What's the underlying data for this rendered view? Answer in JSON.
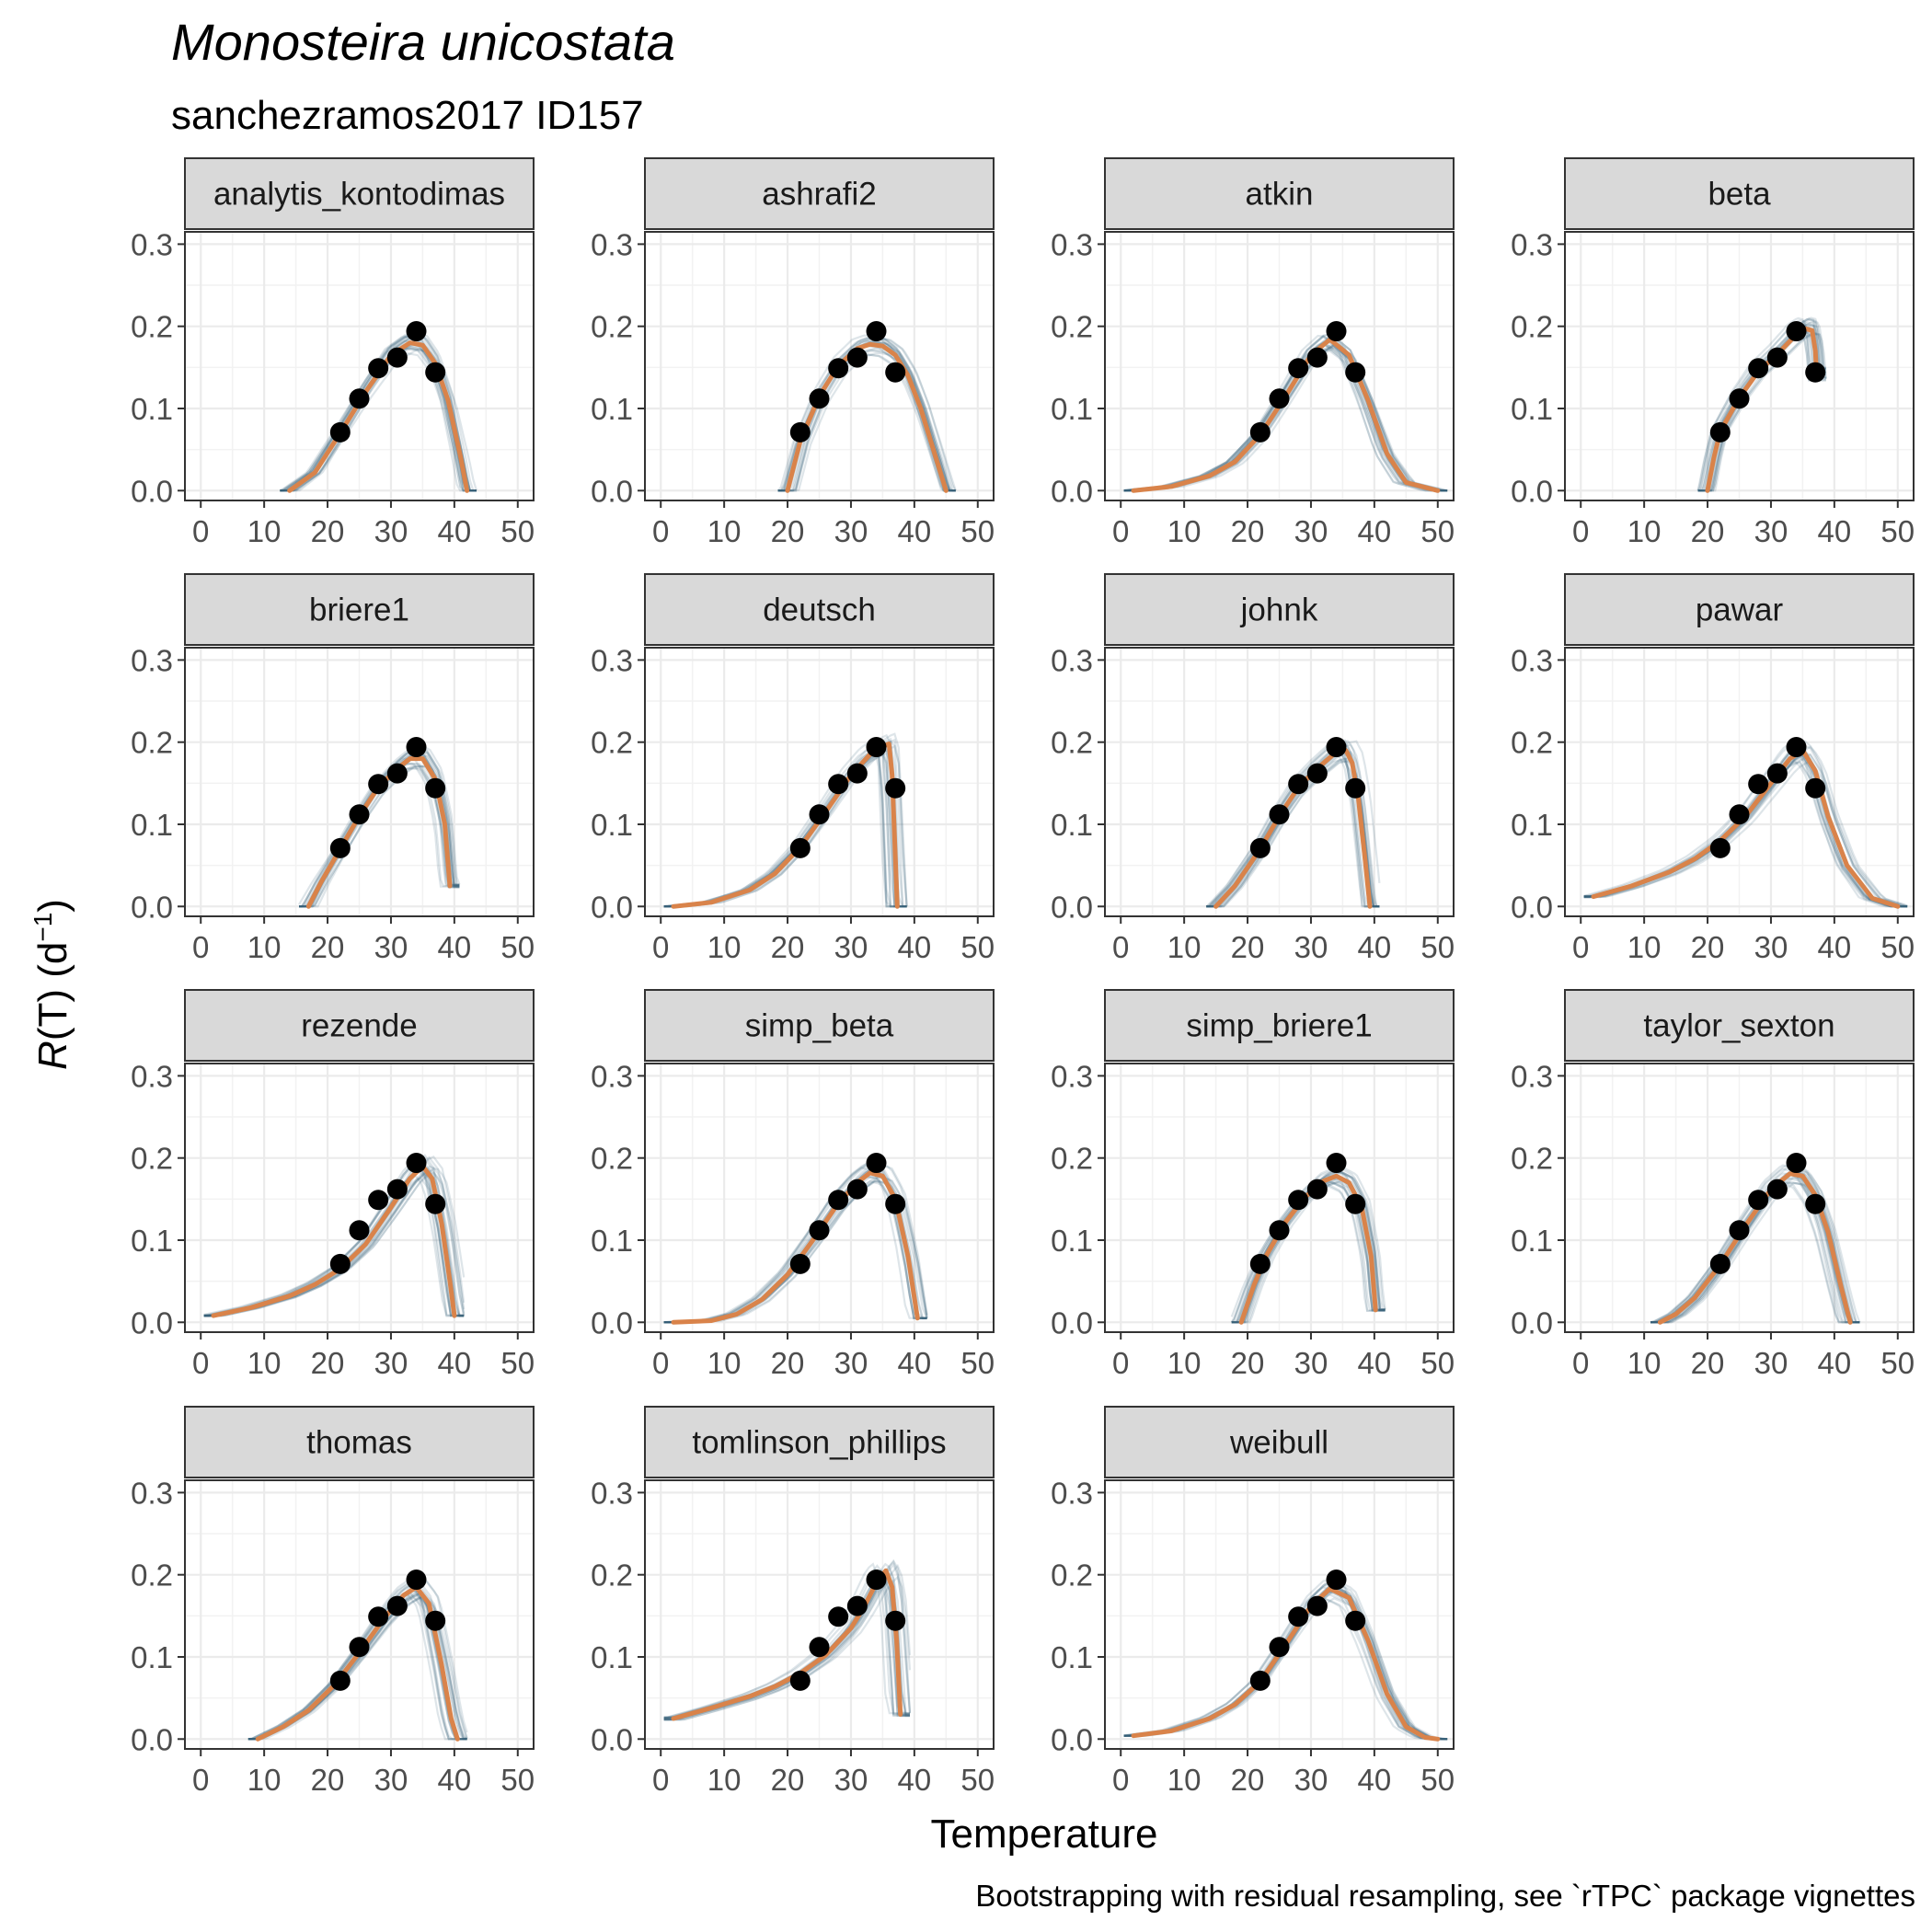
{
  "title": "Monosteira unicostata",
  "subtitle": "sanchezramos2017 ID157",
  "caption": "Bootstrapping with residual resampling, see `rTPC` package vignettes",
  "colors": {
    "fit": "#d9834a",
    "boot": "#2f5f74",
    "points": "#000000",
    "strip": "#d9d9d9"
  },
  "chart_data": {
    "type": "line",
    "xlabel": "Temperature",
    "ylabel": {
      "italic": "R",
      "rest": "(T) (d",
      "sup": "−1",
      "close": ")"
    },
    "xlim": [
      -2.5,
      52.5
    ],
    "ylim": [
      -0.012,
      0.315
    ],
    "xticks": [
      0,
      10,
      20,
      30,
      40,
      50
    ],
    "xtick_labels": [
      "0",
      "10",
      "20",
      "30",
      "40",
      "50"
    ],
    "yticks": [
      0.0,
      0.1,
      0.2,
      0.3
    ],
    "ytick_labels": [
      "0.0",
      "0.1",
      "0.2",
      "0.3"
    ],
    "grid": true,
    "observed": {
      "x": [
        22,
        25,
        28,
        31,
        34,
        37
      ],
      "y": [
        0.071,
        0.112,
        0.149,
        0.162,
        0.194,
        0.144
      ]
    },
    "panels": [
      {
        "name": "analytis_kontodimas",
        "fit": {
          "x": [
            14,
            18,
            22,
            26,
            30,
            33,
            35,
            37,
            39,
            41,
            42
          ],
          "y": [
            0.0,
            0.022,
            0.07,
            0.12,
            0.165,
            0.18,
            0.177,
            0.155,
            0.11,
            0.04,
            0.0
          ]
        }
      },
      {
        "name": "ashrafi2",
        "fit": {
          "x": [
            20,
            22,
            25,
            28,
            31,
            33,
            35,
            37,
            39,
            41,
            43,
            45
          ],
          "y": [
            0.0,
            0.06,
            0.115,
            0.152,
            0.173,
            0.178,
            0.176,
            0.165,
            0.14,
            0.1,
            0.05,
            0.0
          ]
        }
      },
      {
        "name": "atkin",
        "fit": {
          "x": [
            2,
            8,
            14,
            18,
            22,
            26,
            30,
            33,
            36,
            39,
            42,
            45,
            50
          ],
          "y": [
            0.0,
            0.005,
            0.018,
            0.035,
            0.068,
            0.115,
            0.165,
            0.184,
            0.165,
            0.11,
            0.045,
            0.01,
            0.0
          ]
        }
      },
      {
        "name": "beta",
        "fit": {
          "x": [
            20,
            21,
            22,
            25,
            28,
            31,
            34,
            35.5,
            36.5,
            37,
            37.2
          ],
          "y": [
            0.0,
            0.04,
            0.072,
            0.113,
            0.145,
            0.166,
            0.19,
            0.197,
            0.195,
            0.17,
            0.14
          ]
        }
      },
      {
        "name": "briere1",
        "fit": {
          "x": [
            17,
            19,
            22,
            25,
            28,
            31,
            33,
            35,
            37,
            38.5,
            39.3
          ],
          "y": [
            0.0,
            0.03,
            0.07,
            0.11,
            0.145,
            0.168,
            0.18,
            0.18,
            0.155,
            0.1,
            0.025
          ]
        }
      },
      {
        "name": "deutsch",
        "fit": {
          "x": [
            2,
            8,
            14,
            18,
            22,
            26,
            30,
            33,
            35,
            36,
            36.5,
            37.3
          ],
          "y": [
            0.0,
            0.005,
            0.02,
            0.04,
            0.072,
            0.115,
            0.16,
            0.185,
            0.195,
            0.198,
            0.16,
            0.0
          ]
        }
      },
      {
        "name": "johnk",
        "fit": {
          "x": [
            15,
            18,
            22,
            25,
            28,
            31,
            34,
            35.5,
            36.5,
            37.5,
            38.5,
            39.3
          ],
          "y": [
            0.0,
            0.025,
            0.07,
            0.11,
            0.145,
            0.168,
            0.188,
            0.19,
            0.175,
            0.13,
            0.06,
            0.0
          ]
        }
      },
      {
        "name": "pawar",
        "fit": {
          "x": [
            2,
            8,
            14,
            18,
            22,
            26,
            30,
            33,
            35,
            37,
            39,
            42,
            46,
            50
          ],
          "y": [
            0.012,
            0.025,
            0.042,
            0.058,
            0.08,
            0.11,
            0.15,
            0.18,
            0.19,
            0.165,
            0.11,
            0.05,
            0.01,
            0.0
          ]
        }
      },
      {
        "name": "rezende",
        "fit": {
          "x": [
            2,
            8,
            14,
            18,
            22,
            26,
            30,
            33,
            35,
            36.5,
            38,
            39.3,
            40
          ],
          "y": [
            0.008,
            0.018,
            0.032,
            0.046,
            0.065,
            0.095,
            0.14,
            0.175,
            0.19,
            0.175,
            0.12,
            0.05,
            0.008
          ]
        }
      },
      {
        "name": "simp_beta",
        "fit": {
          "x": [
            2,
            8,
            12,
            16,
            20,
            24,
            28,
            31,
            33,
            35,
            37,
            39,
            40.5
          ],
          "y": [
            0.0,
            0.002,
            0.01,
            0.028,
            0.058,
            0.1,
            0.145,
            0.17,
            0.182,
            0.178,
            0.15,
            0.08,
            0.005
          ]
        }
      },
      {
        "name": "simp_briere1",
        "fit": {
          "x": [
            19,
            21,
            23,
            26,
            29,
            32,
            34,
            36,
            38,
            39.5,
            40.2
          ],
          "y": [
            0.0,
            0.045,
            0.082,
            0.122,
            0.152,
            0.172,
            0.178,
            0.17,
            0.14,
            0.08,
            0.015
          ]
        }
      },
      {
        "name": "taylor_sexton",
        "fit": {
          "x": [
            12.5,
            15,
            18,
            22,
            26,
            30,
            33,
            35,
            37,
            39,
            41,
            42.5
          ],
          "y": [
            0.0,
            0.01,
            0.03,
            0.07,
            0.118,
            0.162,
            0.181,
            0.178,
            0.155,
            0.11,
            0.045,
            0.0
          ]
        }
      },
      {
        "name": "thomas",
        "fit": {
          "x": [
            9,
            13,
            17,
            21,
            25,
            29,
            32,
            34,
            36,
            38,
            39.5,
            40.5
          ],
          "y": [
            0.0,
            0.015,
            0.035,
            0.065,
            0.105,
            0.148,
            0.175,
            0.185,
            0.165,
            0.09,
            0.025,
            0.0
          ]
        }
      },
      {
        "name": "tomlinson_phillips",
        "fit": {
          "x": [
            2,
            8,
            14,
            18,
            22,
            26,
            30,
            32,
            34,
            35.5,
            36.5,
            37.2,
            37.8
          ],
          "y": [
            0.025,
            0.038,
            0.052,
            0.064,
            0.08,
            0.102,
            0.135,
            0.16,
            0.19,
            0.205,
            0.185,
            0.12,
            0.03
          ]
        }
      },
      {
        "name": "weibull",
        "fit": {
          "x": [
            2,
            8,
            14,
            18,
            22,
            26,
            30,
            33,
            36,
            39,
            42,
            45,
            48,
            50
          ],
          "y": [
            0.004,
            0.01,
            0.025,
            0.042,
            0.07,
            0.115,
            0.162,
            0.183,
            0.172,
            0.12,
            0.055,
            0.015,
            0.002,
            0.0
          ]
        }
      }
    ]
  }
}
